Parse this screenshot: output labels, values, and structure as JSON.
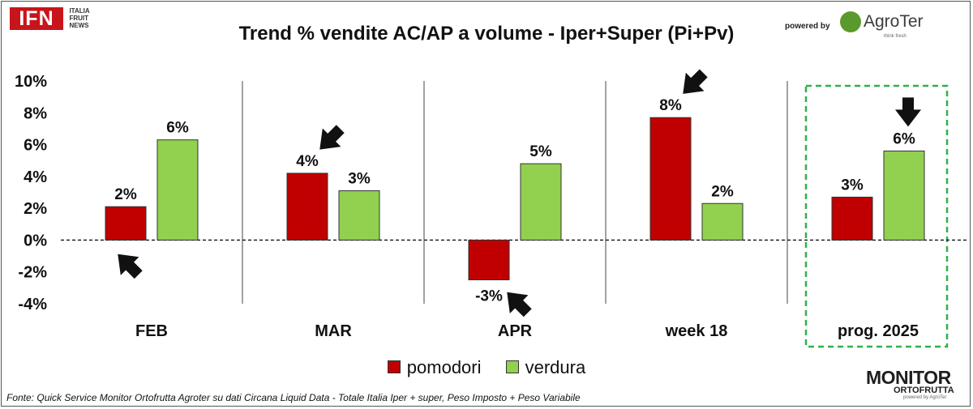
{
  "branding": {
    "ifn_logo": "IFN",
    "ifn_sub": [
      "ITALIA",
      "FRUIT",
      "NEWS"
    ],
    "powered_by": "powered by",
    "agroter_name": "AgroTer",
    "agroter_tag": "think fresh",
    "monitor_top": "MONITOR",
    "monitor_bottom": "ORTOFRUTTA",
    "monitor_by": "powered by AgroTer"
  },
  "footer": "Fonte: Quick Service Monitor Ortofrutta Agroter su dati Circana Liquid Data - Totale Italia Iper + super, Peso Imposto + Peso Variabile",
  "chart_data": {
    "type": "bar",
    "title": "Trend % vendite AC/AP a volume -  Iper+Super (Pi+Pv)",
    "categories": [
      "FEB",
      "MAR",
      "APR",
      "week 18",
      "prog. 2025"
    ],
    "series": [
      {
        "name": "pomodori",
        "color": "#c00000",
        "values": [
          2.1,
          4.2,
          -2.5,
          7.7,
          2.7
        ],
        "labels": [
          "2%",
          "4%",
          "-3%",
          "8%",
          "3%"
        ]
      },
      {
        "name": "verdura",
        "color": "#92d050",
        "values": [
          6.3,
          3.1,
          4.8,
          2.3,
          5.6
        ],
        "labels": [
          "6%",
          "3%",
          "5%",
          "2%",
          "6%"
        ]
      }
    ],
    "ylim": [
      -4,
      10
    ],
    "yticks": [
      "10%",
      "8%",
      "6%",
      "4%",
      "2%",
      "0%",
      "-2%",
      "-4%"
    ],
    "ytick_values": [
      10,
      8,
      6,
      4,
      2,
      0,
      -2,
      -4
    ],
    "grid": false,
    "legend_position": "bottom",
    "highlight_category": "prog. 2025",
    "highlight_color": "#2eb24a",
    "arrows": [
      {
        "category": "FEB",
        "series": "pomodori",
        "direction": "up-left"
      },
      {
        "category": "MAR",
        "series": "pomodori",
        "direction": "down-left"
      },
      {
        "category": "APR",
        "series": "pomodori",
        "direction": "up-left"
      },
      {
        "category": "week 18",
        "series": "pomodori",
        "direction": "down-left"
      },
      {
        "category": "prog. 2025",
        "series": "verdura",
        "direction": "down"
      }
    ]
  }
}
